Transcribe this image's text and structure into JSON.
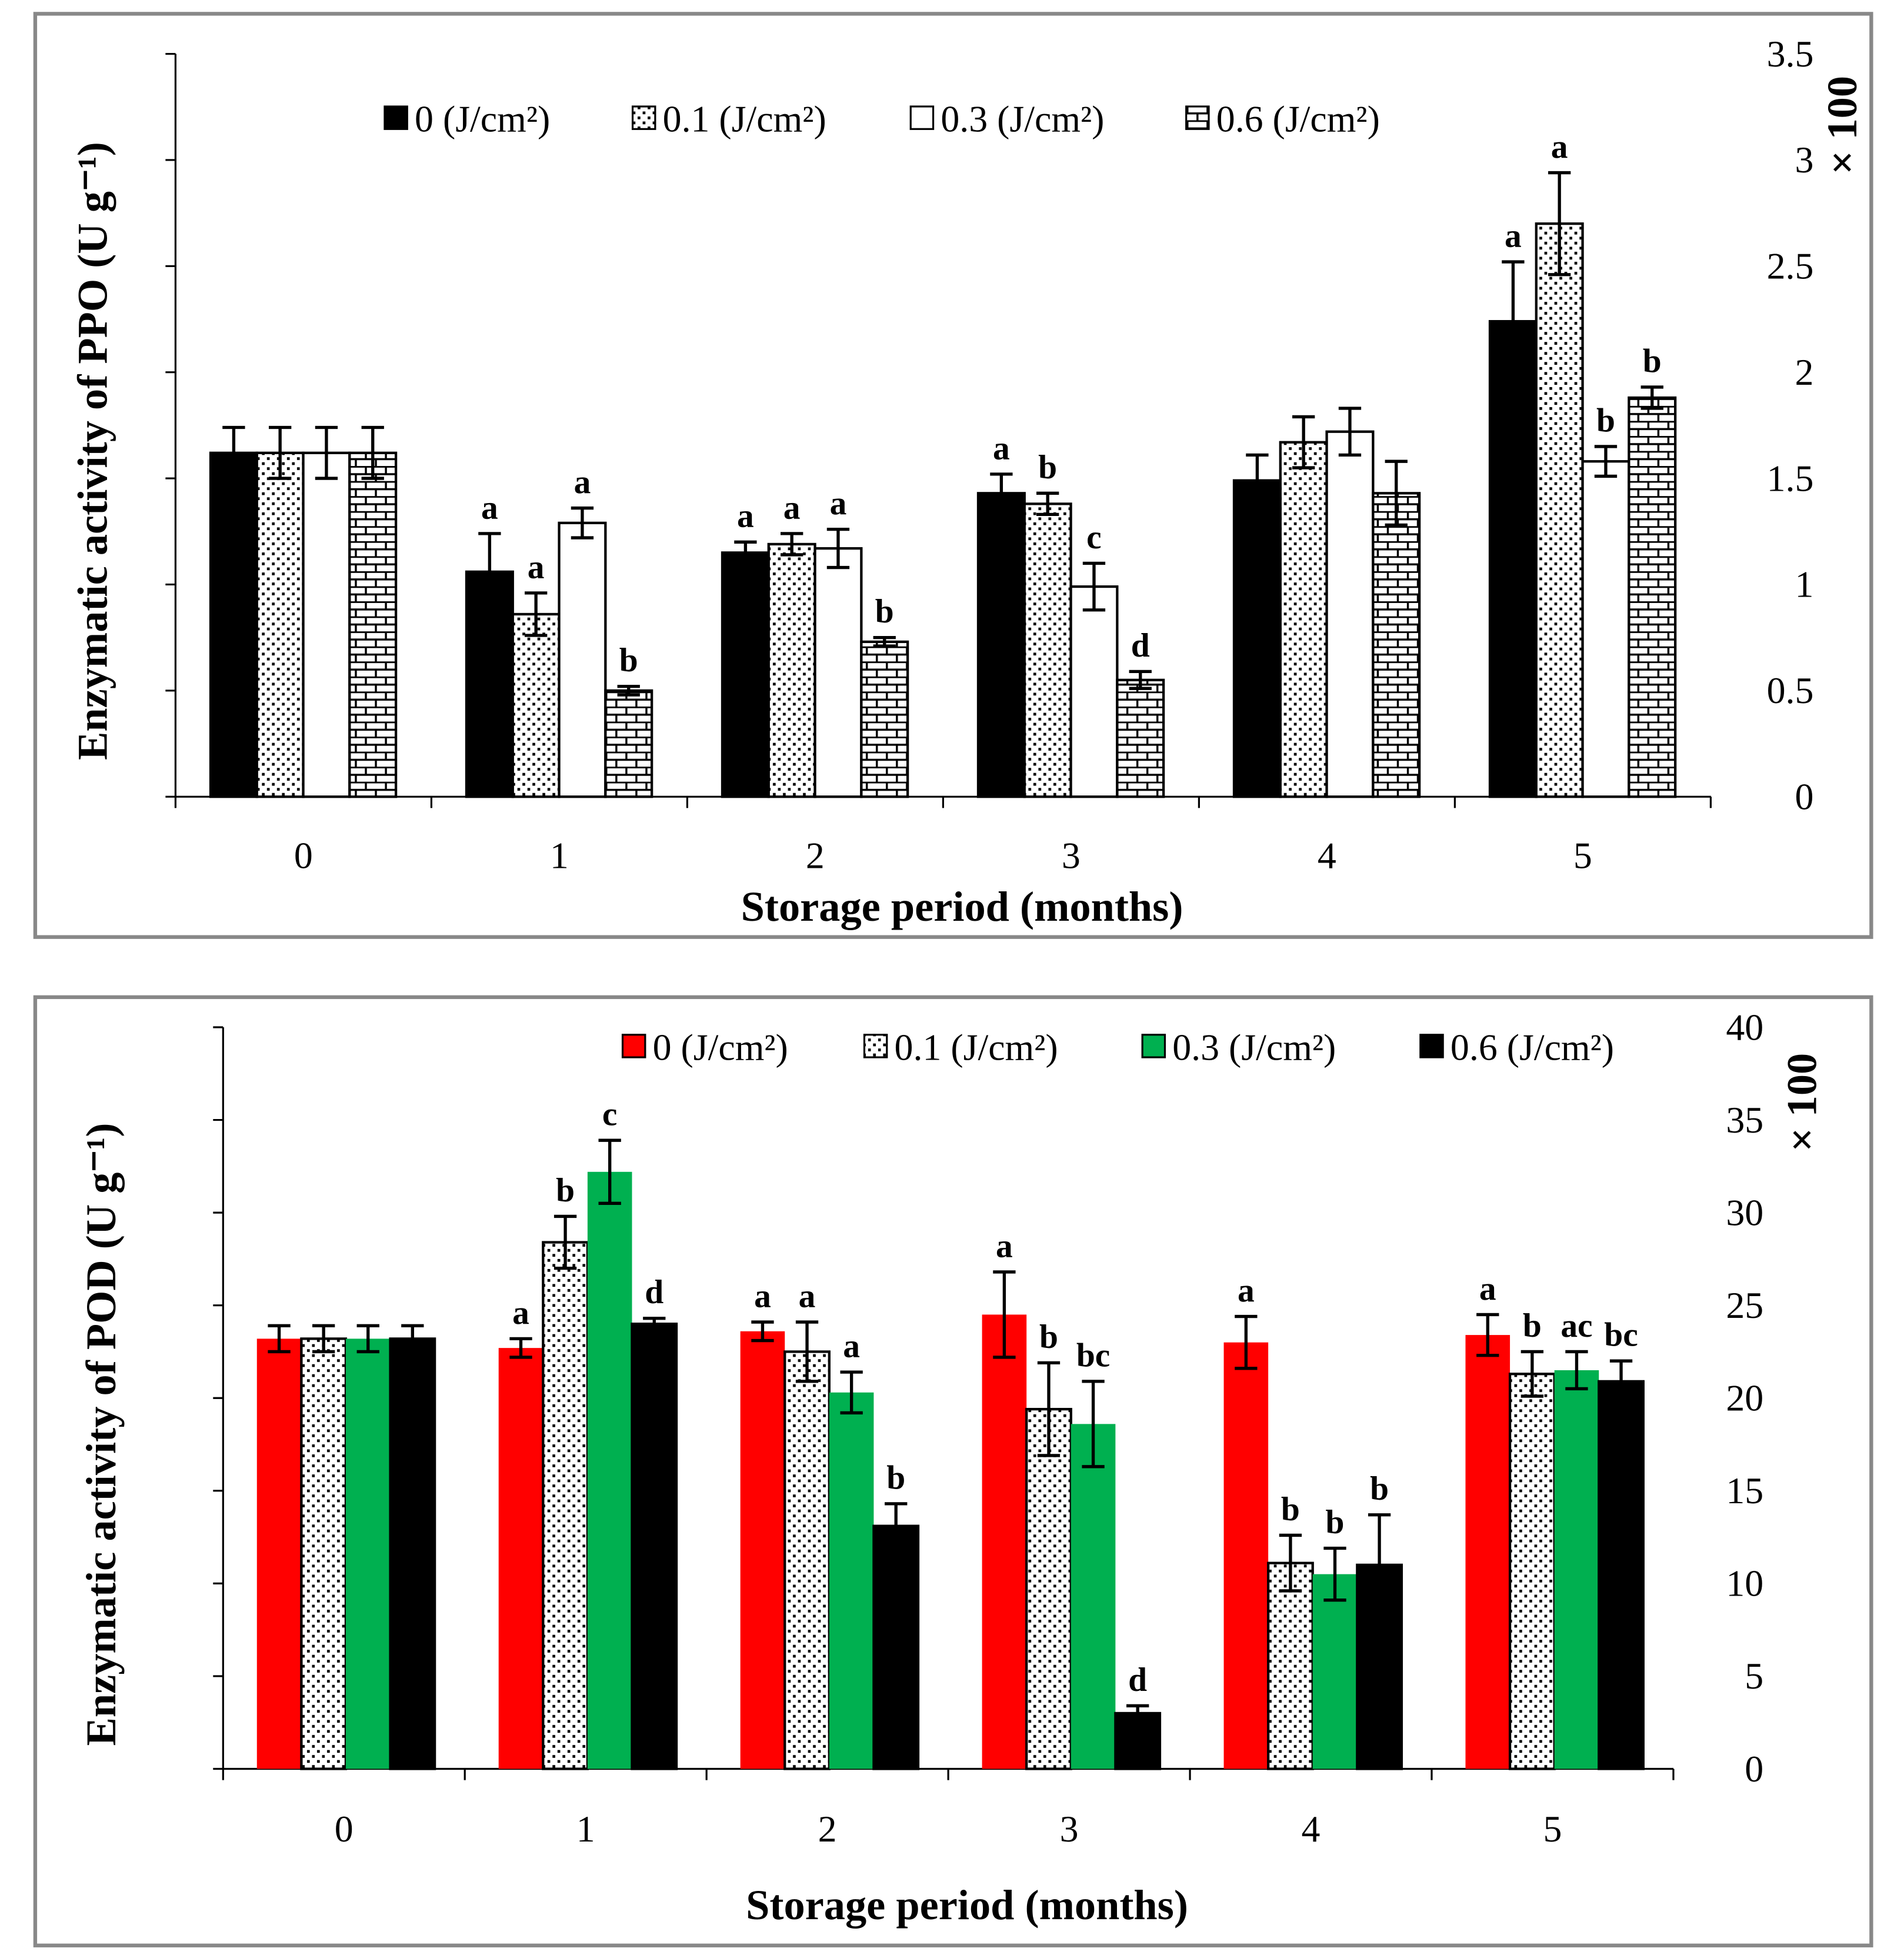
{
  "chart_data": [
    {
      "type": "bar",
      "title": "",
      "xlabel": "Storage period (months)",
      "ylabel": "Enzymatic activity of  PPO (U g⁻¹)",
      "y_multiplier": "× 100",
      "ylim": [
        0,
        3.5
      ],
      "yticks": [
        "0",
        "0.5",
        "1",
        "1.5",
        "2",
        "2.5",
        "3",
        "3.5"
      ],
      "categories": [
        "0",
        "1",
        "2",
        "3",
        "4",
        "5"
      ],
      "legend_position": "top",
      "series": [
        {
          "name": "0 (J/cm²)",
          "fill": "solid-black",
          "values": [
            1.62,
            1.06,
            1.15,
            1.43,
            1.49,
            2.24
          ],
          "errors": [
            0.12,
            0.18,
            0.05,
            0.09,
            0.12,
            0.28
          ],
          "letters": [
            "",
            "a",
            "a",
            "a",
            "",
            "a"
          ]
        },
        {
          "name": "0.1 (J/cm²)",
          "fill": "dotted",
          "values": [
            1.62,
            0.86,
            1.19,
            1.38,
            1.67,
            2.7
          ],
          "errors": [
            0.12,
            0.1,
            0.05,
            0.05,
            0.12,
            0.24
          ],
          "letters": [
            "",
            "a",
            "a",
            "b",
            "",
            "a"
          ]
        },
        {
          "name": "0.3 (J/cm²)",
          "fill": "white",
          "values": [
            1.62,
            1.29,
            1.17,
            0.99,
            1.72,
            1.58
          ],
          "errors": [
            0.12,
            0.07,
            0.09,
            0.11,
            0.11,
            0.07
          ],
          "letters": [
            "",
            "a",
            "a",
            "c",
            "",
            "b"
          ]
        },
        {
          "name": "0.6 (J/cm²)",
          "fill": "brick",
          "values": [
            1.62,
            0.5,
            0.73,
            0.55,
            1.43,
            1.88
          ],
          "errors": [
            0.12,
            0.02,
            0.02,
            0.04,
            0.15,
            0.05
          ],
          "letters": [
            "",
            "b",
            "b",
            "d",
            "",
            "b"
          ]
        }
      ]
    },
    {
      "type": "bar",
      "title": "",
      "xlabel": "Storage period (months)",
      "ylabel": "Enzymatic activity of POD (U g⁻¹)",
      "y_multiplier": "× 100",
      "ylim": [
        0,
        40
      ],
      "yticks": [
        "0",
        "5",
        "10",
        "15",
        "20",
        "25",
        "30",
        "35",
        "40"
      ],
      "categories": [
        "0",
        "1",
        "2",
        "3",
        "4",
        "5"
      ],
      "legend_position": "top-right",
      "series": [
        {
          "name": "0 (J/cm²)",
          "fill": "#ff0000",
          "values": [
            23.2,
            22.7,
            23.6,
            24.5,
            23.0,
            23.4
          ],
          "errors": [
            0.7,
            0.5,
            0.5,
            2.3,
            1.4,
            1.1
          ],
          "letters": [
            "",
            "a",
            "a",
            "a",
            "a",
            "a"
          ]
        },
        {
          "name": "0.1 (J/cm²)",
          "fill": "dotted",
          "values": [
            23.2,
            28.4,
            22.5,
            19.4,
            11.1,
            21.3
          ],
          "errors": [
            0.7,
            1.4,
            1.6,
            2.5,
            1.5,
            1.2
          ],
          "letters": [
            "",
            "b",
            "a",
            "b",
            "b",
            "b"
          ]
        },
        {
          "name": "0.3 (J/cm²)",
          "fill": "#00b050",
          "values": [
            23.2,
            32.2,
            20.3,
            18.6,
            10.5,
            21.5
          ],
          "errors": [
            0.7,
            1.7,
            1.1,
            2.3,
            1.4,
            1.0
          ],
          "letters": [
            "",
            "c",
            "a",
            "bc",
            "b",
            "ac"
          ]
        },
        {
          "name": "0.6 (J/cm²)",
          "fill": "#000000",
          "values": [
            23.2,
            24.0,
            13.1,
            3.0,
            11.0,
            20.9
          ],
          "errors": [
            0.7,
            0.3,
            1.2,
            0.4,
            2.7,
            1.1
          ],
          "letters": [
            "",
            "d",
            "b",
            "d",
            "b",
            "bc"
          ]
        }
      ]
    }
  ]
}
